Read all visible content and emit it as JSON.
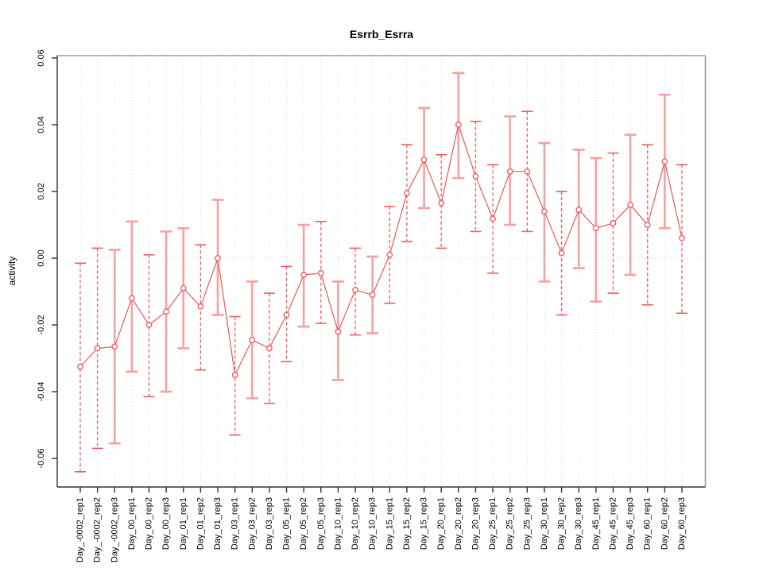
{
  "chart_data": {
    "type": "line",
    "title": "Esrrb_Esrra",
    "ylabel": "activity",
    "xlabel": "",
    "ylim": [
      -0.0686,
      0.0607
    ],
    "y_ticks": [
      "-0.06",
      "-0.04",
      "-0.02",
      "0.00",
      "0.02",
      "0.04",
      "0.06"
    ],
    "grid": "dotted vertical gridline at every category; dotted horizontal gridline at 0.00 only",
    "legend": "none",
    "marker": "open-circle",
    "error_bars": true,
    "colors": {
      "series_line": "#f25555",
      "marker_stroke": "#f25555",
      "error_bar_solid": "#f7a0a0",
      "error_bar_dashed": "#f25c5c",
      "gridline": "#d6d6d6",
      "box_top_right": "#9b9b9b",
      "axis_left_bottom": "#333333",
      "text": "#000000",
      "background": "#ffffff"
    },
    "categories": [
      "Day_-0002_rep1",
      "Day_-0002_rep2",
      "Day_-0002_rep3",
      "Day_00_rep1",
      "Day_00_rep2",
      "Day_00_rep3",
      "Day_01_rep1",
      "Day_01_rep2",
      "Day_01_rep3",
      "Day_03_rep1",
      "Day_03_rep2",
      "Day_03_rep3",
      "Day_05_rep1",
      "Day_05_rep2",
      "Day_05_rep3",
      "Day_10_rep1",
      "Day_10_rep2",
      "Day_10_rep3",
      "Day_15_rep1",
      "Day_15_rep2",
      "Day_15_rep3",
      "Day_20_rep1",
      "Day_20_rep2",
      "Day_20_rep3",
      "Day_25_rep1",
      "Day_25_rep2",
      "Day_25_rep3",
      "Day_30_rep1",
      "Day_30_rep2",
      "Day_30_rep3",
      "Day_45_rep1",
      "Day_45_rep2",
      "Day_45_rep3",
      "Day_60_rep1",
      "Day_60_rep2",
      "Day_60_rep3"
    ],
    "series": [
      {
        "name": "activity",
        "values": [
          -0.0325,
          -0.027,
          -0.0265,
          -0.012,
          -0.02,
          -0.016,
          -0.009,
          -0.0145,
          0.0,
          -0.035,
          -0.0245,
          -0.027,
          -0.017,
          -0.005,
          -0.0045,
          -0.022,
          -0.0095,
          -0.011,
          0.001,
          0.0195,
          0.0295,
          0.0165,
          0.04,
          0.0245,
          0.0118,
          0.026,
          0.026,
          0.014,
          0.0015,
          0.0145,
          0.009,
          0.0105,
          0.016,
          0.01,
          0.029,
          0.006
        ],
        "error_upper": [
          -0.0015,
          0.003,
          0.0025,
          0.011,
          0.001,
          0.008,
          0.009,
          0.004,
          0.0175,
          -0.0175,
          -0.007,
          -0.0105,
          -0.0025,
          0.01,
          0.011,
          -0.007,
          0.003,
          0.0005,
          0.0155,
          0.034,
          0.045,
          0.031,
          0.0555,
          0.041,
          0.028,
          0.0425,
          0.044,
          0.0345,
          0.02,
          0.0325,
          0.03,
          0.0315,
          0.037,
          0.034,
          0.049,
          0.028
        ],
        "error_lower": [
          -0.064,
          -0.057,
          -0.0555,
          -0.034,
          -0.0415,
          -0.04,
          -0.027,
          -0.0335,
          -0.017,
          -0.053,
          -0.042,
          -0.0435,
          -0.031,
          -0.0205,
          -0.0195,
          -0.0365,
          -0.023,
          -0.0225,
          -0.0135,
          0.005,
          0.015,
          0.003,
          0.024,
          0.008,
          -0.0045,
          0.01,
          0.008,
          -0.007,
          -0.017,
          -0.003,
          -0.013,
          -0.0105,
          -0.005,
          -0.014,
          0.009,
          -0.0165
        ],
        "error_bar_styles": [
          "dashed",
          "dashed",
          "solid",
          "solid",
          "dashed",
          "solid",
          "solid",
          "dashed",
          "solid",
          "dashed",
          "solid",
          "dashed",
          "dashed",
          "solid",
          "dashed",
          "solid",
          "dashed",
          "solid",
          "dashed",
          "dashed",
          "solid",
          "dashed",
          "solid",
          "dashed",
          "dashed",
          "solid",
          "dashed",
          "solid",
          "dashed",
          "solid",
          "solid",
          "dashed",
          "solid",
          "dashed",
          "solid",
          "dashed"
        ]
      }
    ]
  }
}
